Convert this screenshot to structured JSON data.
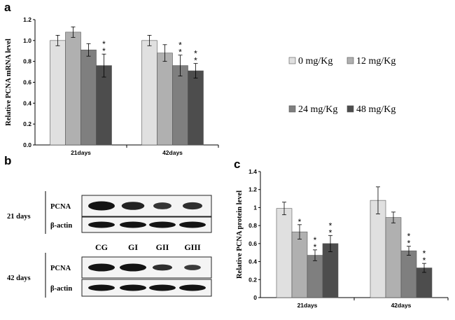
{
  "panels": {
    "a": {
      "letter": "a"
    },
    "b": {
      "letter": "b"
    },
    "c": {
      "letter": "c"
    }
  },
  "legend": {
    "items": [
      {
        "label": "0 mg/Kg",
        "color": "#e0e0e0"
      },
      {
        "label": "12 mg/Kg",
        "color": "#b0b0b0"
      },
      {
        "label": "24 mg/Kg",
        "color": "#7f7f7f"
      },
      {
        "label": "48 mg/Kg",
        "color": "#4d4d4d"
      }
    ]
  },
  "blot": {
    "groups": [
      {
        "time_label": "21 days",
        "rows": [
          {
            "label": "PCNA"
          },
          {
            "label": "β-actin"
          }
        ],
        "pcna_intensity": [
          1.0,
          0.75,
          0.45,
          0.55
        ],
        "actin_intensity": [
          1.0,
          1.0,
          1.0,
          1.0
        ]
      },
      {
        "time_label": "42 days",
        "rows": [
          {
            "label": "PCNA"
          },
          {
            "label": "β-actin"
          }
        ],
        "pcna_intensity": [
          1.0,
          1.0,
          0.55,
          0.35
        ],
        "actin_intensity": [
          1.0,
          1.0,
          1.0,
          1.0
        ]
      }
    ],
    "lanes": [
      "CG",
      "GI",
      "GII",
      "GIII"
    ]
  },
  "chart_data": [
    {
      "type": "bar",
      "panel": "a",
      "title": "",
      "xlabel": "",
      "ylabel": "Relative PCNA mRNA level",
      "categories": [
        "21days",
        "42days"
      ],
      "ylim": [
        0,
        1.2
      ],
      "yticks": [
        "0.0",
        "0.2",
        "0.4",
        "0.6",
        "0.8",
        "1.0",
        "1.2"
      ],
      "series": [
        {
          "name": "0 mg/Kg",
          "values": [
            1.0,
            1.0
          ],
          "errors": [
            0.05,
            0.05
          ],
          "sig": [
            "",
            ""
          ]
        },
        {
          "name": "12 mg/Kg",
          "values": [
            1.08,
            0.88
          ],
          "errors": [
            0.05,
            0.08
          ],
          "sig": [
            "",
            ""
          ]
        },
        {
          "name": "24 mg/Kg",
          "values": [
            0.91,
            0.76
          ],
          "errors": [
            0.06,
            0.1
          ],
          "sig": [
            "",
            "**"
          ]
        },
        {
          "name": "48 mg/Kg",
          "values": [
            0.76,
            0.71
          ],
          "errors": [
            0.11,
            0.07
          ],
          "sig": [
            "**",
            "**"
          ]
        }
      ]
    },
    {
      "type": "bar",
      "panel": "c",
      "title": "",
      "xlabel": "",
      "ylabel": "Relative PCNA protein level",
      "categories": [
        "21days",
        "42days"
      ],
      "ylim": [
        0,
        1.4
      ],
      "yticks": [
        "0",
        "0.2",
        "0.4",
        "0.6",
        "0.8",
        "1",
        "1.2",
        "1.4"
      ],
      "series": [
        {
          "name": "0 mg/Kg",
          "values": [
            0.99,
            1.08
          ],
          "errors": [
            0.07,
            0.15
          ],
          "sig": [
            "",
            ""
          ]
        },
        {
          "name": "12 mg/Kg",
          "values": [
            0.73,
            0.89
          ],
          "errors": [
            0.08,
            0.06
          ],
          "sig": [
            "*",
            ""
          ]
        },
        {
          "name": "24 mg/Kg",
          "values": [
            0.47,
            0.52
          ],
          "errors": [
            0.06,
            0.05
          ],
          "sig": [
            "**",
            "**"
          ]
        },
        {
          "name": "48 mg/Kg",
          "values": [
            0.6,
            0.33
          ],
          "errors": [
            0.09,
            0.05
          ],
          "sig": [
            "**",
            "**"
          ]
        }
      ]
    }
  ]
}
